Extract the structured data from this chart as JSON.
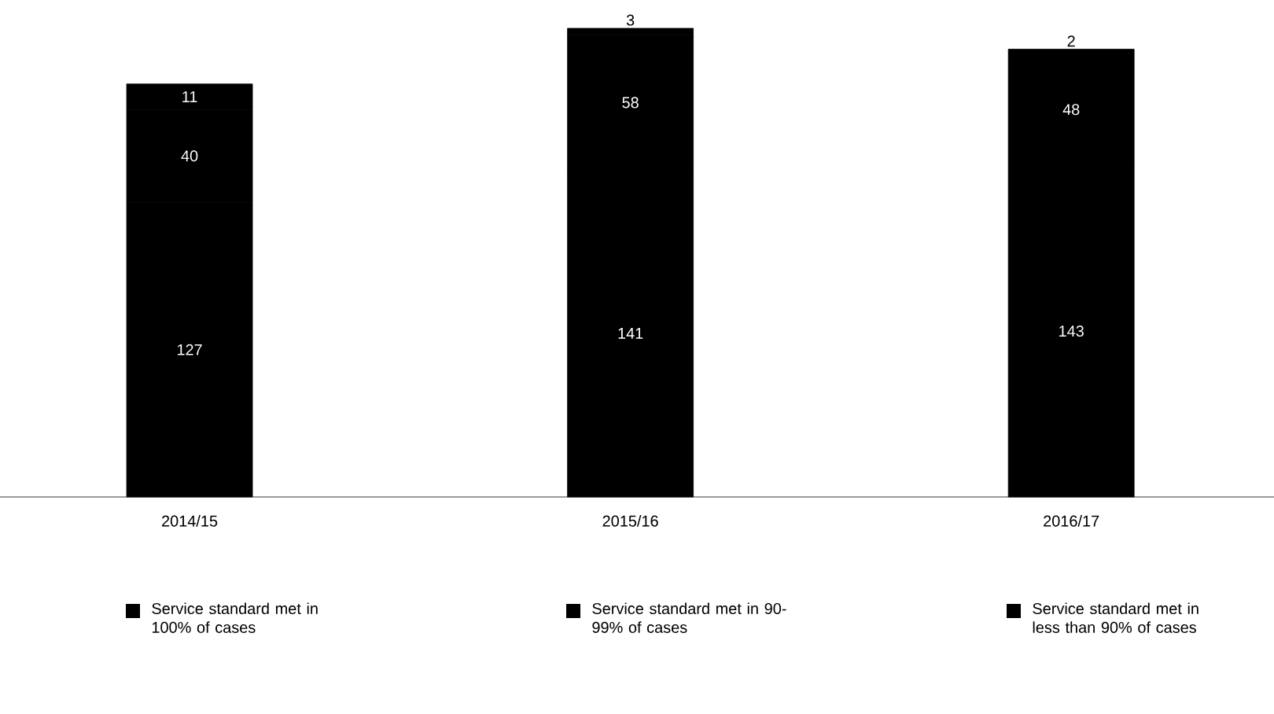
{
  "chart_data": {
    "type": "bar",
    "stacked": true,
    "data_labels": true,
    "legend": "bottom",
    "categories": [
      "2014/15",
      "2015/16",
      "2016/17"
    ],
    "series": [
      {
        "name": "Service standard met in 100% of cases",
        "color": "#000000",
        "values": [
          127,
          141,
          143
        ]
      },
      {
        "name": "Service standard met in 90-99% of cases",
        "color": "#000000",
        "values": [
          40,
          58,
          48
        ]
      },
      {
        "name": "Service standard met in less than 90% of cases",
        "color": "#000000",
        "values": [
          11,
          3,
          2
        ]
      }
    ]
  }
}
